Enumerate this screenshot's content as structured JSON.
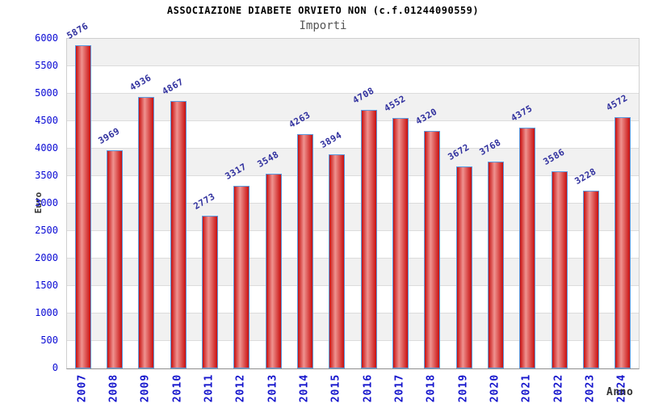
{
  "chart_data": {
    "type": "bar",
    "title": "ASSOCIAZIONE DIABETE ORVIETO NON (c.f.01244090559)",
    "subtitle": "Importi",
    "xlabel": "Anno",
    "ylabel": "Euro",
    "categories": [
      "2007",
      "2008",
      "2009",
      "2010",
      "2011",
      "2012",
      "2013",
      "2014",
      "2015",
      "2016",
      "2017",
      "2018",
      "2019",
      "2020",
      "2021",
      "2022",
      "2023",
      "2024"
    ],
    "values": [
      5876,
      3969,
      4936,
      4867,
      2773,
      3317,
      3548,
      4263,
      3894,
      4708,
      4552,
      4320,
      3672,
      3768,
      4375,
      3586,
      3228,
      4572
    ],
    "ylim": [
      0,
      6000
    ],
    "yticks": [
      6000,
      5500,
      5000,
      4500,
      4000,
      3500,
      3000,
      2500,
      2000,
      1500,
      1000,
      500,
      0
    ],
    "grid": true,
    "legend": "none",
    "band_shading": "alternating horizontal bands, shaded band at top",
    "colors": {
      "bar_edge": "#c8100f",
      "bar_center": "#ef9390",
      "bar_border": "#5b9be0",
      "value_label": "#30309e",
      "x_tick_label": "#1414cc",
      "y_tick_label": "#0a0ad4",
      "band_shade": "#f1f1f1",
      "band_white": "#ffffff",
      "gridline": "#dcdcdc",
      "title": "#000000",
      "subtitle": "#555555",
      "axis_label": "#333333"
    }
  }
}
